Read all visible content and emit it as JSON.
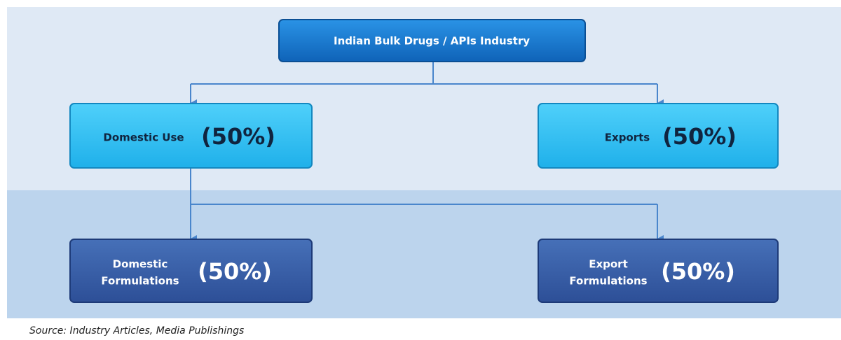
{
  "nodes": [
    {
      "label": "Indian Bulk Drugs / APIs Industry"
    },
    {
      "label": "Domestic Use",
      "share": "(50%)"
    },
    {
      "label": "Exports",
      "share": "(50%)"
    },
    {
      "label_lines": [
        "Domestic",
        "Formulations"
      ],
      "share": "(50%)"
    },
    {
      "label_lines": [
        "Export",
        "Formulations"
      ],
      "share": "(50%)"
    }
  ],
  "source": "Source: Industry Articles, Media Publishings"
}
